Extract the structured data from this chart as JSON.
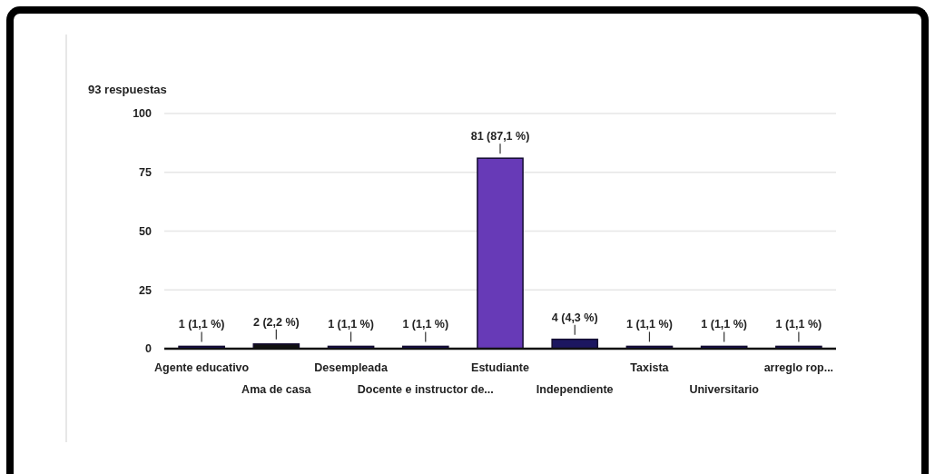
{
  "chart_data": {
    "type": "bar",
    "title": "93 respuestas",
    "categories": [
      "Agente educativo",
      "Ama de casa",
      "Desempleada",
      "Docente e instructor de...",
      "Estudiante",
      "Independiente",
      "Taxista",
      "Universitario",
      "arreglo rop..."
    ],
    "values": [
      1,
      2,
      1,
      1,
      81,
      4,
      1,
      1,
      1
    ],
    "colors": [
      "#1b1464",
      "#111111",
      "#1b1464",
      "#1b1464",
      "#673ab7",
      "#1c1660",
      "#1b1464",
      "#1b1464",
      "#1b1464"
    ],
    "value_labels": [
      "1 (1,1 %)",
      "2 (2,2 %)",
      "1 (1,1 %)",
      "1 (1,1 %)",
      "81 (87,1 %)",
      "4 (4,3 %)",
      "1 (1,1 %)",
      "1 (1,1 %)",
      "1 (1,1 %)"
    ],
    "ylim": [
      0,
      100
    ],
    "yticks": [
      0,
      25,
      50,
      75,
      100
    ],
    "grid": "y"
  }
}
